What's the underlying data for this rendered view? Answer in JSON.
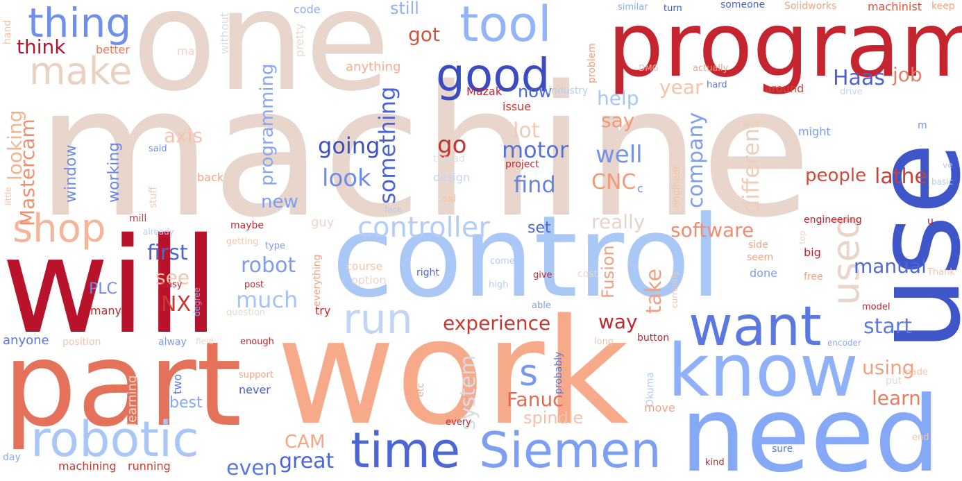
{
  "words": [
    {
      "text": "machine",
      "color": "#e8d6cc"
    },
    {
      "text": "one",
      "color": "#e8d6cc"
    },
    {
      "text": "program",
      "color": "#c5252f"
    },
    {
      "text": "use",
      "color": "#3f56c9"
    },
    {
      "text": "control",
      "color": "#aac8f6"
    },
    {
      "text": "will",
      "color": "#b8132b"
    },
    {
      "text": "work",
      "color": "#f6aa8a"
    },
    {
      "text": "part",
      "color": "#e4725a"
    },
    {
      "text": "need",
      "color": "#86a9f7"
    },
    {
      "text": "know",
      "color": "#8eb1f8"
    },
    {
      "text": "want",
      "color": "#5a78df"
    },
    {
      "text": "time",
      "color": "#4d66d5"
    },
    {
      "text": "Siemen",
      "color": "#7c9ef3"
    },
    {
      "text": "robotic",
      "color": "#a9c6f7"
    },
    {
      "text": "tool",
      "color": "#93b5f8"
    },
    {
      "text": "good",
      "color": "#3b4cc0"
    },
    {
      "text": "thing",
      "color": "#6f8fec"
    },
    {
      "text": "make",
      "color": "#ead2c3"
    },
    {
      "text": "shop",
      "color": "#f4b69b"
    },
    {
      "text": "run",
      "color": "#c2d5f3"
    },
    {
      "text": "used",
      "color": "#e9d5c9"
    },
    {
      "text": "s",
      "color": "#7598ee"
    },
    {
      "text": "controller",
      "color": "#b3cdf6"
    },
    {
      "text": "think",
      "color": "#b8122a"
    },
    {
      "text": "Haas",
      "color": "#4a63d3"
    },
    {
      "text": "job",
      "color": "#e07f67"
    },
    {
      "text": "going",
      "color": "#3d50c3"
    },
    {
      "text": "something",
      "color": "#4b64d5"
    },
    {
      "text": "look",
      "color": "#6c8cea"
    },
    {
      "text": "motor",
      "color": "#5572dd"
    },
    {
      "text": "find",
      "color": "#6384e5"
    },
    {
      "text": "go",
      "color": "#c4362d"
    },
    {
      "text": "lot",
      "color": "#f2c9b3"
    },
    {
      "text": "well",
      "color": "#7392ec"
    },
    {
      "text": "CNC",
      "color": "#f29a76"
    },
    {
      "text": "company",
      "color": "#7c9ef3"
    },
    {
      "text": "different",
      "color": "#efcdb9"
    },
    {
      "text": "lathe",
      "color": "#cb3f36"
    },
    {
      "text": "people",
      "color": "#d04a3e"
    },
    {
      "text": "experience",
      "color": "#c63a30"
    },
    {
      "text": "great",
      "color": "#4b65d4"
    },
    {
      "text": "even",
      "color": "#5a77de"
    },
    {
      "text": "CAM",
      "color": "#f3a784"
    },
    {
      "text": "Fanuc",
      "color": "#e3694f"
    },
    {
      "text": "spindle",
      "color": "#f4c0a8"
    },
    {
      "text": "system",
      "color": "#d6dde9"
    },
    {
      "text": "learn",
      "color": "#e87c61"
    },
    {
      "text": "start",
      "color": "#5c7bdf"
    },
    {
      "text": "using",
      "color": "#f0a17f"
    },
    {
      "text": "manual",
      "color": "#4d68d6"
    },
    {
      "text": "software",
      "color": "#ee8d70"
    },
    {
      "text": "really",
      "color": "#e6d4cc"
    },
    {
      "text": "way",
      "color": "#c0282f"
    },
    {
      "text": "take",
      "color": "#f19f7f"
    },
    {
      "text": "Fusion",
      "color": "#f0a07d"
    },
    {
      "text": "set",
      "color": "#4a63d4"
    },
    {
      "text": "NX",
      "color": "#c63a31"
    },
    {
      "text": "first",
      "color": "#4b65d4"
    },
    {
      "text": "see",
      "color": "#f4c4ab"
    },
    {
      "text": "much",
      "color": "#a6c2f7"
    },
    {
      "text": "robot",
      "color": "#7b9cf1"
    },
    {
      "text": "PLC",
      "color": "#6b8bea"
    },
    {
      "text": "programming",
      "color": "#86a7f5"
    },
    {
      "text": "looking",
      "color": "#f2b594"
    },
    {
      "text": "Mastercam",
      "color": "#ee906e"
    },
    {
      "text": "axis",
      "color": "#f6c4aa"
    },
    {
      "text": "window",
      "color": "#6e8eea"
    },
    {
      "text": "working",
      "color": "#6587e6"
    },
    {
      "text": "new",
      "color": "#7b9ff2"
    },
    {
      "text": "help",
      "color": "#a8c5f8"
    },
    {
      "text": "say",
      "color": "#ee9a7b"
    },
    {
      "text": "year",
      "color": "#f5c3a8"
    },
    {
      "text": "now",
      "color": "#4b64d3"
    },
    {
      "text": "got",
      "color": "#d2553f"
    },
    {
      "text": "still",
      "color": "#8eaef5"
    },
    {
      "text": "anything",
      "color": "#f2ad8e"
    },
    {
      "text": "better",
      "color": "#ea7c5f"
    },
    {
      "text": "may",
      "color": "#ecd4c6"
    },
    {
      "text": "without",
      "color": "#d8dce6"
    },
    {
      "text": "pretty",
      "color": "#e9d7cd"
    },
    {
      "text": "code",
      "color": "#8aaaf4"
    },
    {
      "text": "hand",
      "color": "#f4c1a6"
    },
    {
      "text": "Mazak",
      "color": "#c3222e"
    },
    {
      "text": "issue",
      "color": "#c63a31"
    },
    {
      "text": "industry",
      "color": "#b8cdf3"
    },
    {
      "text": "thread",
      "color": "#dcdde3"
    },
    {
      "text": "design",
      "color": "#c6d5f0"
    },
    {
      "text": "project",
      "color": "#c0282f"
    },
    {
      "text": "old",
      "color": "#f5c4aa"
    },
    {
      "text": "stuff",
      "color": "#f0cbb6"
    },
    {
      "text": "said",
      "color": "#6f8fec"
    },
    {
      "text": "back",
      "color": "#f0a482"
    },
    {
      "text": "problem",
      "color": "#f19d7a"
    },
    {
      "text": "similar",
      "color": "#8aabf5"
    },
    {
      "text": "turn",
      "color": "#3f56c9"
    },
    {
      "text": "someone",
      "color": "#4b64d3"
    },
    {
      "text": "Solidworks",
      "color": "#f0a482"
    },
    {
      "text": "machinist",
      "color": "#d5563f"
    },
    {
      "text": "keep",
      "color": "#f0a482"
    },
    {
      "text": "DMG",
      "color": "#f4c4ab"
    },
    {
      "text": "actually",
      "color": "#f0a482"
    },
    {
      "text": "hard",
      "color": "#5a78df"
    },
    {
      "text": "around",
      "color": "#d1463a"
    },
    {
      "text": "drive",
      "color": "#c2d5f3"
    },
    {
      "text": "might",
      "color": "#7b9cf1"
    },
    {
      "text": "m",
      "color": "#6e8eea"
    },
    {
      "text": "c",
      "color": "#6b8bea"
    },
    {
      "text": "engineer",
      "color": "#f4c4ab"
    },
    {
      "text": "ve",
      "color": "#b3cdf6"
    },
    {
      "text": "basic",
      "color": "#b3cdf6"
    },
    {
      "text": "little",
      "color": "#f4c4ab"
    },
    {
      "text": "mill",
      "color": "#c63a30"
    },
    {
      "text": "already",
      "color": "#b3cdf6"
    },
    {
      "text": "maybe",
      "color": "#c0282f"
    },
    {
      "text": "getting",
      "color": "#f4c4ab"
    },
    {
      "text": "type",
      "color": "#7b9cf1"
    },
    {
      "text": "guy",
      "color": "#e9d7cd"
    },
    {
      "text": "face",
      "color": "#b3cdf6"
    },
    {
      "text": "engineering",
      "color": "#c3222e"
    },
    {
      "text": "u",
      "color": "#b8132b"
    },
    {
      "text": "top",
      "color": "#e9d7cd"
    },
    {
      "text": "side",
      "color": "#f0a482"
    },
    {
      "text": "seem",
      "color": "#f0a482"
    },
    {
      "text": "big",
      "color": "#c0282f"
    },
    {
      "text": "free",
      "color": "#f0a482"
    },
    {
      "text": "Thank",
      "color": "#f4c4ab"
    },
    {
      "text": "done",
      "color": "#7b9cf1"
    },
    {
      "text": "cost",
      "color": "#e9d7cd"
    },
    {
      "text": "currently",
      "color": "#f4c4ab"
    },
    {
      "text": "come",
      "color": "#b3cdf6"
    },
    {
      "text": "course",
      "color": "#f4c4ab"
    },
    {
      "text": "option",
      "color": "#e9d7cd"
    },
    {
      "text": "right",
      "color": "#4b64d3"
    },
    {
      "text": "high",
      "color": "#b3cdf6"
    },
    {
      "text": "give",
      "color": "#c0282f"
    },
    {
      "text": "able",
      "color": "#7b9cf1"
    },
    {
      "text": "model",
      "color": "#c0282f"
    },
    {
      "text": "easy",
      "color": "#c0282f"
    },
    {
      "text": "post",
      "color": "#c0282f"
    },
    {
      "text": "degree",
      "color": "#8aaaf4"
    },
    {
      "text": "everything",
      "color": "#f0a482"
    },
    {
      "text": "try",
      "color": "#c0282f"
    },
    {
      "text": "question",
      "color": "#e9d7cd"
    },
    {
      "text": "many",
      "color": "#c0282f"
    },
    {
      "text": "anyone",
      "color": "#5a78df"
    },
    {
      "text": "position",
      "color": "#f4c4ab"
    },
    {
      "text": "alway",
      "color": "#7b9cf1"
    },
    {
      "text": "field",
      "color": "#e9d7cd"
    },
    {
      "text": "enough",
      "color": "#c0282f"
    },
    {
      "text": "button",
      "color": "#c0282f"
    },
    {
      "text": "long",
      "color": "#f4c4ab"
    },
    {
      "text": "encoder",
      "color": "#8aaaf4"
    },
    {
      "text": "learning",
      "color": "#e9d7cd"
    },
    {
      "text": "two",
      "color": "#5a78df"
    },
    {
      "text": "best",
      "color": "#86a9f7"
    },
    {
      "text": "support",
      "color": "#f0a482"
    },
    {
      "text": "never",
      "color": "#4b64d3"
    },
    {
      "text": "etc",
      "color": "#f0a482"
    },
    {
      "text": "probably",
      "color": "#5a78df"
    },
    {
      "text": "Okuma",
      "color": "#b3cdf6"
    },
    {
      "text": "move",
      "color": "#f0a482"
    },
    {
      "text": "made",
      "color": "#f4c4ab"
    },
    {
      "text": "put",
      "color": "#e9d7cd"
    },
    {
      "text": "end",
      "color": "#f4c4ab"
    },
    {
      "text": "sure",
      "color": "#5a78df"
    },
    {
      "text": "kind",
      "color": "#c0282f"
    },
    {
      "text": "every",
      "color": "#c0282f"
    },
    {
      "text": "day",
      "color": "#8aaaf4"
    },
    {
      "text": "machining",
      "color": "#c63a30"
    },
    {
      "text": "running",
      "color": "#c63a30"
    }
  ]
}
